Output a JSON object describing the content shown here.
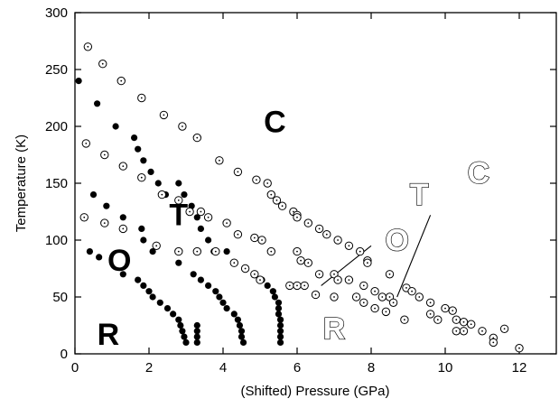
{
  "chart_data": {
    "type": "scatter",
    "title": "",
    "xlabel": "(Shifted) Pressure (GPa)",
    "ylabel": "Temperature (K)",
    "xlim": [
      0,
      13
    ],
    "ylim": [
      0,
      300
    ],
    "xticks": [
      0,
      2,
      4,
      6,
      8,
      10,
      12
    ],
    "yticks": [
      0,
      50,
      100,
      150,
      200,
      250,
      300
    ],
    "xtick_labels": [
      "0",
      "2",
      "4",
      "6",
      "8",
      "10",
      "12"
    ],
    "ytick_labels": [
      "0",
      "50",
      "100",
      "150",
      "200",
      "250",
      "300"
    ],
    "grid": false,
    "legend": "none",
    "marker_colors": {
      "filled": "#000000",
      "open_stroke": "#000000"
    },
    "series": [
      {
        "marker": "filled-circle",
        "points": [
          [
            0.1,
            240
          ],
          [
            0.6,
            220
          ],
          [
            1.1,
            200
          ],
          [
            1.6,
            190
          ],
          [
            1.7,
            180
          ],
          [
            1.85,
            170
          ],
          [
            2.05,
            160
          ],
          [
            2.25,
            150
          ],
          [
            2.45,
            140
          ],
          [
            0.5,
            140
          ],
          [
            0.85,
            130
          ],
          [
            1.3,
            120
          ],
          [
            1.8,
            110
          ],
          [
            1.85,
            100
          ],
          [
            2.1,
            90
          ],
          [
            0.4,
            90
          ],
          [
            0.65,
            85
          ],
          [
            1.3,
            70
          ],
          [
            1.7,
            65
          ],
          [
            1.85,
            60
          ],
          [
            2.0,
            55
          ],
          [
            2.1,
            50
          ],
          [
            2.3,
            45
          ],
          [
            2.5,
            40
          ],
          [
            2.65,
            35
          ],
          [
            2.8,
            30
          ],
          [
            2.85,
            25
          ],
          [
            2.9,
            20
          ],
          [
            2.95,
            15
          ],
          [
            3.0,
            10
          ],
          [
            2.8,
            150
          ],
          [
            2.95,
            140
          ],
          [
            3.15,
            130
          ],
          [
            3.3,
            120
          ],
          [
            3.4,
            110
          ],
          [
            3.6,
            100
          ],
          [
            3.75,
            90
          ],
          [
            2.8,
            80
          ],
          [
            3.2,
            70
          ],
          [
            3.4,
            65
          ],
          [
            3.6,
            60
          ],
          [
            3.8,
            55
          ],
          [
            3.9,
            50
          ],
          [
            4.0,
            45
          ],
          [
            4.1,
            40
          ],
          [
            4.3,
            35
          ],
          [
            4.4,
            30
          ],
          [
            4.45,
            25
          ],
          [
            4.5,
            20
          ],
          [
            4.5,
            15
          ],
          [
            4.55,
            10
          ],
          [
            3.3,
            25
          ],
          [
            3.3,
            20
          ],
          [
            3.3,
            15
          ],
          [
            3.3,
            10
          ],
          [
            4.1,
            90
          ],
          [
            4.3,
            80
          ],
          [
            4.6,
            75
          ],
          [
            4.85,
            70
          ],
          [
            5.05,
            65
          ],
          [
            5.2,
            60
          ],
          [
            5.35,
            55
          ],
          [
            5.4,
            50
          ],
          [
            5.5,
            45
          ],
          [
            5.5,
            40
          ],
          [
            5.5,
            35
          ],
          [
            5.55,
            30
          ],
          [
            5.55,
            25
          ],
          [
            5.55,
            20
          ],
          [
            5.55,
            15
          ],
          [
            5.55,
            10
          ]
        ]
      },
      {
        "marker": "open-circle",
        "points": [
          [
            0.35,
            270
          ],
          [
            0.75,
            255
          ],
          [
            1.25,
            240
          ],
          [
            1.8,
            225
          ],
          [
            2.4,
            210
          ],
          [
            2.9,
            200
          ],
          [
            3.3,
            190
          ],
          [
            3.9,
            170
          ],
          [
            4.4,
            160
          ],
          [
            4.9,
            153
          ],
          [
            5.2,
            150
          ],
          [
            5.3,
            140
          ],
          [
            5.45,
            135
          ],
          [
            5.6,
            130
          ],
          [
            5.9,
            125
          ],
          [
            6.0,
            122
          ],
          [
            6.0,
            120
          ],
          [
            6.3,
            115
          ],
          [
            6.6,
            110
          ],
          [
            6.8,
            105
          ],
          [
            7.1,
            100
          ],
          [
            7.4,
            95
          ],
          [
            7.7,
            90
          ],
          [
            0.3,
            185
          ],
          [
            0.8,
            175
          ],
          [
            1.3,
            165
          ],
          [
            1.8,
            155
          ],
          [
            2.35,
            140
          ],
          [
            2.8,
            135
          ],
          [
            3.1,
            125
          ],
          [
            3.4,
            125
          ],
          [
            3.6,
            120
          ],
          [
            4.1,
            115
          ],
          [
            4.4,
            105
          ],
          [
            4.85,
            102
          ],
          [
            5.05,
            100
          ],
          [
            5.3,
            90
          ],
          [
            0.25,
            120
          ],
          [
            0.8,
            115
          ],
          [
            1.3,
            110
          ],
          [
            2.2,
            95
          ],
          [
            2.8,
            90
          ],
          [
            3.3,
            90
          ],
          [
            3.8,
            90
          ],
          [
            4.3,
            80
          ],
          [
            4.6,
            75
          ],
          [
            4.85,
            70
          ],
          [
            5.0,
            65
          ],
          [
            6.0,
            90
          ],
          [
            6.1,
            82
          ],
          [
            6.3,
            80
          ],
          [
            6.6,
            70
          ],
          [
            7.0,
            70
          ],
          [
            7.1,
            65
          ],
          [
            7.4,
            65
          ],
          [
            7.8,
            60
          ],
          [
            7.9,
            82
          ],
          [
            7.9,
            80
          ],
          [
            8.1,
            55
          ],
          [
            8.3,
            50
          ],
          [
            8.5,
            70
          ],
          [
            5.8,
            60
          ],
          [
            6.0,
            60
          ],
          [
            6.2,
            60
          ],
          [
            6.5,
            52
          ],
          [
            7.0,
            50
          ],
          [
            7.6,
            50
          ],
          [
            7.8,
            45
          ],
          [
            8.1,
            40
          ],
          [
            8.5,
            50
          ],
          [
            8.6,
            45
          ],
          [
            8.4,
            37
          ],
          [
            8.9,
            30
          ],
          [
            8.95,
            58
          ],
          [
            9.1,
            55
          ],
          [
            9.3,
            50
          ],
          [
            9.6,
            45
          ],
          [
            9.6,
            35
          ],
          [
            9.8,
            30
          ],
          [
            10.0,
            40
          ],
          [
            10.2,
            38
          ],
          [
            10.3,
            30
          ],
          [
            10.5,
            28
          ],
          [
            10.3,
            20
          ],
          [
            10.5,
            20
          ],
          [
            10.7,
            26
          ],
          [
            11.0,
            20
          ],
          [
            11.3,
            14
          ],
          [
            11.3,
            10
          ],
          [
            11.6,
            22
          ],
          [
            12.0,
            5
          ]
        ]
      }
    ],
    "annotations": [
      {
        "text": "C",
        "x": 5.4,
        "y": 195,
        "style": "bold"
      },
      {
        "text": "T",
        "x": 2.8,
        "y": 113,
        "style": "bold"
      },
      {
        "text": "O",
        "x": 1.2,
        "y": 73,
        "style": "bold"
      },
      {
        "text": "R",
        "x": 0.9,
        "y": 8,
        "style": "bold"
      },
      {
        "text": "C",
        "x": 10.9,
        "y": 150,
        "style": "outline"
      },
      {
        "text": "T",
        "x": 9.3,
        "y": 131,
        "style": "outline"
      },
      {
        "text": "O",
        "x": 8.7,
        "y": 91,
        "style": "outline"
      },
      {
        "text": "R",
        "x": 7.0,
        "y": 13,
        "style": "outline"
      }
    ],
    "annotation_lines": [
      {
        "x1": 6.65,
        "y1": 60,
        "x2": 8.0,
        "y2": 95
      },
      {
        "x1": 8.7,
        "y1": 50,
        "x2": 9.6,
        "y2": 122
      }
    ]
  }
}
